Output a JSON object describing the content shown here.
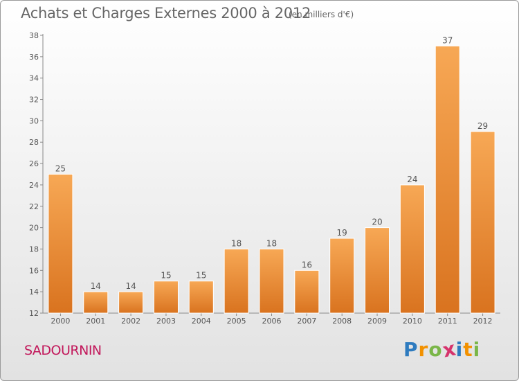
{
  "title": "Achats et Charges Externes 2000 à 2012",
  "subtitle": "(en milliers d'€)",
  "commune": "SADOURNIN",
  "logo": {
    "letters": [
      "P",
      "r",
      "o",
      "x",
      "i",
      "t",
      "i"
    ],
    "colors": [
      "#2e7bbf",
      "#f29100",
      "#7ab648",
      "#d6336c",
      "#2e7bbf",
      "#f29100",
      "#7ab648"
    ]
  },
  "colors": {
    "bar_top": "#f7a855",
    "bar_bottom": "#d9731f",
    "axis": "#888888",
    "text": "#555555"
  },
  "chart_data": {
    "type": "bar",
    "title": "Achats et Charges Externes 2000 à 2012",
    "categories": [
      "2000",
      "2001",
      "2002",
      "2003",
      "2004",
      "2005",
      "2006",
      "2007",
      "2008",
      "2009",
      "2010",
      "2011",
      "2012"
    ],
    "values": [
      25,
      14,
      14,
      15,
      15,
      18,
      18,
      16,
      19,
      20,
      24,
      37,
      29
    ],
    "ylim": [
      12,
      38
    ],
    "yticks": [
      12,
      14,
      16,
      18,
      20,
      22,
      24,
      26,
      28,
      30,
      32,
      34,
      36,
      38
    ],
    "data_labels": true,
    "grid": false,
    "xlabel": "",
    "ylabel": ""
  }
}
